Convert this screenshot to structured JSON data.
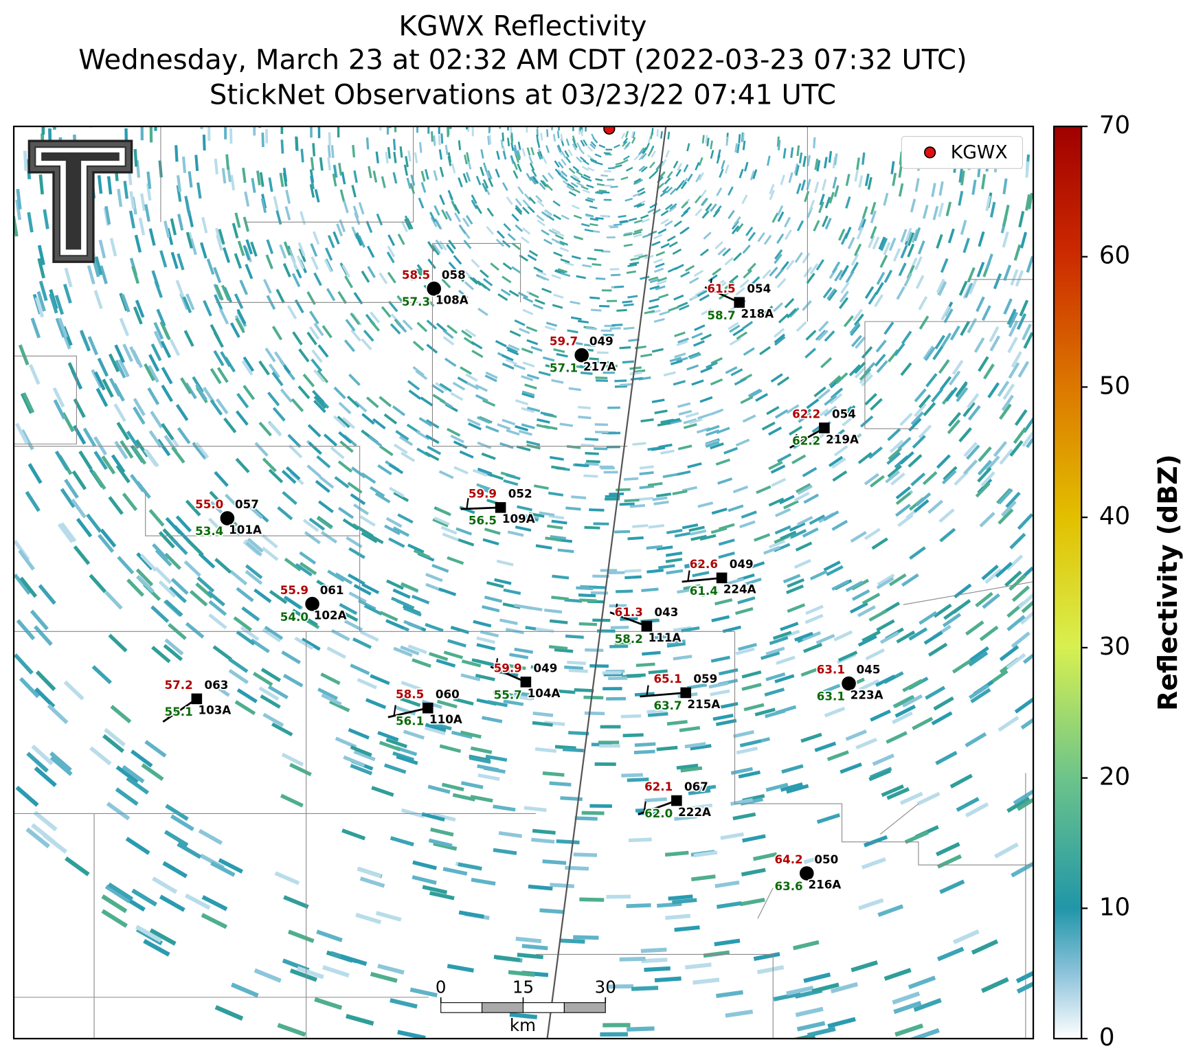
{
  "title": [
    "KGWX Reflectivity",
    "Wednesday, March 23 at 02:32 AM CDT (2022-03-23 07:32 UTC)",
    "StickNet Observations at 03/23/22 07:41 UTC"
  ],
  "legend": "KGWX",
  "stations": [
    {
      "temp": "58.5",
      "dew": "57.3",
      "code": "058",
      "id": "108A"
    },
    {
      "temp": "61.5",
      "dew": "58.7",
      "code": "054",
      "id": "218A"
    },
    {
      "temp": "59.7",
      "dew": "57.1",
      "code": "049",
      "id": "217A"
    },
    {
      "temp": "62.2",
      "dew": "62.2",
      "code": "054",
      "id": "219A"
    },
    {
      "temp": "55.0",
      "dew": "53.4",
      "code": "057",
      "id": "101A"
    },
    {
      "temp": "59.9",
      "dew": "56.5",
      "code": "052",
      "id": "109A"
    },
    {
      "temp": "62.6",
      "dew": "61.4",
      "code": "049",
      "id": "224A"
    },
    {
      "temp": "55.9",
      "dew": "54.0",
      "code": "061",
      "id": "102A"
    },
    {
      "temp": "61.3",
      "dew": "58.2",
      "code": "043",
      "id": "111A"
    },
    {
      "temp": "57.2",
      "dew": "55.1",
      "code": "063",
      "id": "103A"
    },
    {
      "temp": "58.5",
      "dew": "56.1",
      "code": "060",
      "id": "110A"
    },
    {
      "temp": "59.9",
      "dew": "55.7",
      "code": "049",
      "id": "104A"
    },
    {
      "temp": "65.1",
      "dew": "63.7",
      "code": "059",
      "id": "215A"
    },
    {
      "temp": "63.1",
      "dew": "63.1",
      "code": "045",
      "id": "223A"
    },
    {
      "temp": "62.1",
      "dew": "62.0",
      "code": "067",
      "id": "222A"
    },
    {
      "temp": "64.2",
      "dew": "63.6",
      "code": "050",
      "id": "216A"
    }
  ],
  "colorbar": {
    "label": "Reflectivity (dBZ)",
    "lim": [
      0,
      70
    ],
    "ticks": [
      0,
      10,
      20,
      30,
      40,
      50,
      60,
      70
    ]
  },
  "scale_bar": {
    "ticks": [
      0,
      15,
      30
    ],
    "unit": "km"
  }
}
